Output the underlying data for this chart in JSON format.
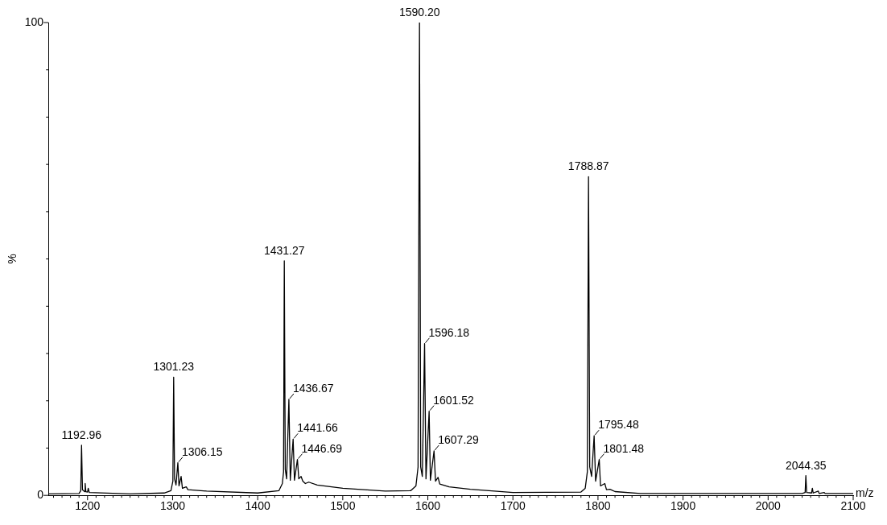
{
  "chart_data": {
    "type": "line",
    "xlabel": "m/z",
    "ylabel": "%",
    "xlim": [
      1154,
      2100
    ],
    "ylim": [
      0,
      100
    ],
    "yticks": [
      0,
      {
        "value": 10,
        "label": null
      },
      {
        "value": 20,
        "label": null
      },
      {
        "value": 30,
        "label": null
      },
      {
        "value": 40,
        "label": null
      },
      {
        "value": 50,
        "label": null
      },
      {
        "value": 60,
        "label": null
      },
      {
        "value": 70,
        "label": null
      },
      {
        "value": 80,
        "label": null
      },
      {
        "value": 90,
        "label": null
      },
      100
    ],
    "xticks": [
      {
        "value": 1160,
        "label": null
      },
      {
        "value": 1170,
        "label": null
      },
      {
        "value": 1180,
        "label": null
      },
      {
        "value": 1190,
        "label": null
      },
      1200,
      {
        "value": 1210,
        "label": null
      },
      {
        "value": 1220,
        "label": null
      },
      {
        "value": 1230,
        "label": null
      },
      {
        "value": 1240,
        "label": null
      },
      {
        "value": 1250,
        "label": null
      },
      {
        "value": 1260,
        "label": null
      },
      {
        "value": 1270,
        "label": null
      },
      {
        "value": 1280,
        "label": null
      },
      {
        "value": 1290,
        "label": null
      },
      1300,
      {
        "value": 1310,
        "label": null
      },
      {
        "value": 1320,
        "label": null
      },
      {
        "value": 1330,
        "label": null
      },
      {
        "value": 1340,
        "label": null
      },
      {
        "value": 1350,
        "label": null
      },
      {
        "value": 1360,
        "label": null
      },
      {
        "value": 1370,
        "label": null
      },
      {
        "value": 1380,
        "label": null
      },
      {
        "value": 1390,
        "label": null
      },
      1400,
      {
        "value": 1410,
        "label": null
      },
      {
        "value": 1420,
        "label": null
      },
      {
        "value": 1430,
        "label": null
      },
      {
        "value": 1440,
        "label": null
      },
      {
        "value": 1450,
        "label": null
      },
      {
        "value": 1460,
        "label": null
      },
      {
        "value": 1470,
        "label": null
      },
      {
        "value": 1480,
        "label": null
      },
      {
        "value": 1490,
        "label": null
      },
      1500,
      {
        "value": 1510,
        "label": null
      },
      {
        "value": 1520,
        "label": null
      },
      {
        "value": 1530,
        "label": null
      },
      {
        "value": 1540,
        "label": null
      },
      {
        "value": 1550,
        "label": null
      },
      {
        "value": 1560,
        "label": null
      },
      {
        "value": 1570,
        "label": null
      },
      {
        "value": 1580,
        "label": null
      },
      {
        "value": 1590,
        "label": null
      },
      1600,
      {
        "value": 1610,
        "label": null
      },
      {
        "value": 1620,
        "label": null
      },
      {
        "value": 1630,
        "label": null
      },
      {
        "value": 1640,
        "label": null
      },
      {
        "value": 1650,
        "label": null
      },
      {
        "value": 1660,
        "label": null
      },
      {
        "value": 1670,
        "label": null
      },
      {
        "value": 1680,
        "label": null
      },
      {
        "value": 1690,
        "label": null
      },
      1700,
      {
        "value": 1710,
        "label": null
      },
      {
        "value": 1720,
        "label": null
      },
      {
        "value": 1730,
        "label": null
      },
      {
        "value": 1740,
        "label": null
      },
      {
        "value": 1750,
        "label": null
      },
      {
        "value": 1760,
        "label": null
      },
      {
        "value": 1770,
        "label": null
      },
      {
        "value": 1780,
        "label": null
      },
      {
        "value": 1790,
        "label": null
      },
      1800,
      {
        "value": 1810,
        "label": null
      },
      {
        "value": 1820,
        "label": null
      },
      {
        "value": 1830,
        "label": null
      },
      {
        "value": 1840,
        "label": null
      },
      {
        "value": 1850,
        "label": null
      },
      {
        "value": 1860,
        "label": null
      },
      {
        "value": 1870,
        "label": null
      },
      {
        "value": 1880,
        "label": null
      },
      {
        "value": 1890,
        "label": null
      },
      1900,
      {
        "value": 1910,
        "label": null
      },
      {
        "value": 1920,
        "label": null
      },
      {
        "value": 1930,
        "label": null
      },
      {
        "value": 1940,
        "label": null
      },
      {
        "value": 1950,
        "label": null
      },
      {
        "value": 1960,
        "label": null
      },
      {
        "value": 1970,
        "label": null
      },
      {
        "value": 1980,
        "label": null
      },
      {
        "value": 1990,
        "label": null
      },
      2000,
      {
        "value": 2010,
        "label": null
      },
      {
        "value": 2020,
        "label": null
      },
      {
        "value": 2030,
        "label": null
      },
      {
        "value": 2040,
        "label": null
      },
      {
        "value": 2050,
        "label": null
      },
      {
        "value": 2060,
        "label": null
      },
      {
        "value": 2070,
        "label": null
      },
      {
        "value": 2080,
        "label": null
      },
      {
        "value": 2090,
        "label": null
      },
      2100
    ],
    "series": [
      {
        "color": "#000000",
        "x": [
          1154,
          1190,
          1192,
          1192.96,
          1194,
          1196.5,
          1197.2,
          1198,
          1200,
          1200.8,
          1202,
          1250,
          1290,
          1298,
          1300.3,
          1301.23,
          1302.3,
          1304,
          1306.15,
          1307.5,
          1310,
          1311.5,
          1316,
          1318,
          1340,
          1400,
          1425,
          1429,
          1430.4,
          1431.27,
          1432.4,
          1434,
          1436.67,
          1438.3,
          1441.66,
          1443.2,
          1446.69,
          1448.3,
          1451,
          1453,
          1456,
          1460,
          1470,
          1500,
          1550,
          1580,
          1586,
          1588.5,
          1590.2,
          1591.6,
          1593.5,
          1596.18,
          1597.8,
          1601.52,
          1603,
          1607.29,
          1609,
          1612,
          1614,
          1618,
          1625,
          1650,
          1700,
          1780,
          1785,
          1787.5,
          1788.87,
          1790.3,
          1792.5,
          1795.48,
          1797.2,
          1801.48,
          1803,
          1808,
          1810,
          1814,
          1820,
          1850,
          2040,
          2043.5,
          2044.35,
          2045.3,
          2051,
          2052,
          2053,
          2059,
          2060,
          2066,
          2067,
          2100
        ],
        "values": [
          0.3,
          0.4,
          1.0,
          10.6,
          1.2,
          0.8,
          2.5,
          0.8,
          0.7,
          1.5,
          0.6,
          0.3,
          0.5,
          1.0,
          3,
          25,
          3.5,
          2.2,
          6.9,
          2.0,
          4.0,
          1.5,
          1.8,
          1.2,
          0.9,
          0.5,
          1.0,
          2.5,
          5,
          49.6,
          5.5,
          3.5,
          20.3,
          3.2,
          11.9,
          3.2,
          7.6,
          3.5,
          4.0,
          3.0,
          2.5,
          2.8,
          2.2,
          1.5,
          0.9,
          1.0,
          2.0,
          6,
          100,
          6,
          4,
          32.1,
          3.5,
          17.8,
          3.2,
          9.4,
          3,
          3.8,
          2.4,
          2.2,
          1.8,
          1.3,
          0.6,
          0.7,
          1.5,
          5,
          67.4,
          6,
          4,
          12.6,
          3,
          7.6,
          2,
          2.5,
          1.2,
          1.3,
          0.8,
          0.4,
          0.4,
          0.6,
          4.2,
          0.6,
          0.5,
          1.5,
          0.5,
          0.9,
          0.4,
          0.6,
          0.4,
          0.4
        ]
      }
    ],
    "annotations": [
      {
        "text": "1192.96",
        "x": 1192.96,
        "y": 10.6
      },
      {
        "text": "1301.23",
        "x": 1301.23,
        "y": 25
      },
      {
        "text": "1306.15",
        "x": 1306.15,
        "y": 6.9
      },
      {
        "text": "1431.27",
        "x": 1431.27,
        "y": 49.6
      },
      {
        "text": "1436.67",
        "x": 1436.67,
        "y": 20.3
      },
      {
        "text": "1441.66",
        "x": 1441.66,
        "y": 11.9
      },
      {
        "text": "1446.69",
        "x": 1446.69,
        "y": 7.6
      },
      {
        "text": "1590.20",
        "x": 1590.2,
        "y": 100
      },
      {
        "text": "1596.18",
        "x": 1596.18,
        "y": 32.1
      },
      {
        "text": "1601.52",
        "x": 1601.52,
        "y": 17.8
      },
      {
        "text": "1607.29",
        "x": 1607.29,
        "y": 9.4
      },
      {
        "text": "1788.87",
        "x": 1788.87,
        "y": 67.4
      },
      {
        "text": "1795.48",
        "x": 1795.48,
        "y": 12.6
      },
      {
        "text": "1801.48",
        "x": 1801.48,
        "y": 7.6
      },
      {
        "text": "2044.35",
        "x": 2044.35,
        "y": 4.2
      }
    ]
  }
}
